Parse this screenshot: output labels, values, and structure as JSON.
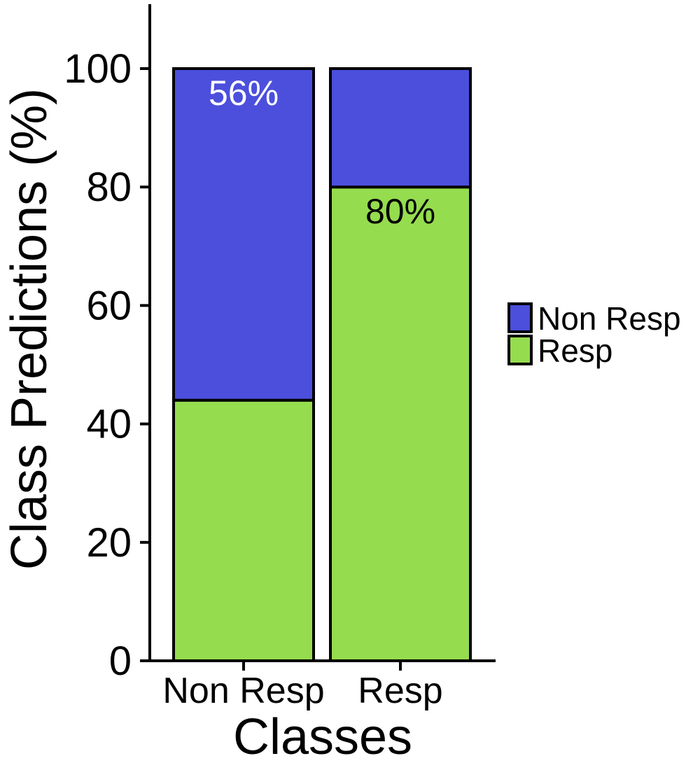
{
  "chart_data": {
    "type": "bar",
    "stacked": true,
    "categories": [
      "Non Resp",
      "Resp"
    ],
    "series": [
      {
        "name": "Resp",
        "values": [
          44,
          80
        ],
        "color": "#95DC4E"
      },
      {
        "name": "Non Resp",
        "values": [
          56,
          20
        ],
        "color": "#4B4FDC"
      }
    ],
    "data_labels": [
      {
        "category": "Non Resp",
        "series": "Non Resp",
        "text": "56%",
        "color": "#ffffff"
      },
      {
        "category": "Resp",
        "series": "Resp",
        "text": "80%",
        "color": "#000000"
      }
    ],
    "xlabel": "Classes",
    "ylabel": "Class Predictions (%)",
    "ylim": [
      0,
      100
    ],
    "yticks": [
      0,
      20,
      40,
      60,
      80,
      100
    ],
    "grid": false,
    "legend": {
      "placement": "right",
      "entries": [
        {
          "label": "Non Resp",
          "color": "#4B4FDC"
        },
        {
          "label": "Resp",
          "color": "#95DC4E"
        }
      ]
    }
  }
}
